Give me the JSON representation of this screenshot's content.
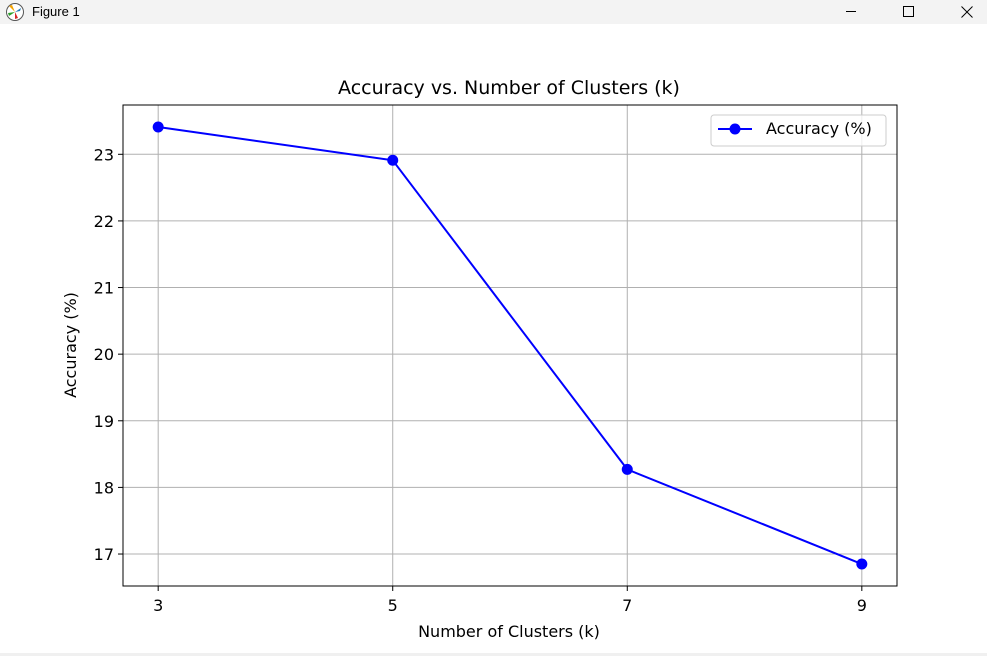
{
  "window": {
    "title": "Figure 1",
    "icon": "matplotlib-icon",
    "controls": {
      "minimize_icon": "minimize-icon",
      "maximize_icon": "maximize-icon",
      "close_icon": "close-icon"
    }
  },
  "chart_data": {
    "type": "line",
    "title": "Accuracy vs. Number of Clusters (k)",
    "xlabel": "Number of Clusters (k)",
    "ylabel": "Accuracy (%)",
    "x": [
      3,
      5,
      7,
      9
    ],
    "xticks": [
      "3",
      "5",
      "7",
      "9"
    ],
    "yticks": [
      "17",
      "18",
      "19",
      "20",
      "21",
      "22",
      "23"
    ],
    "xlim": [
      2.7,
      9.3
    ],
    "ylim": [
      16.52,
      23.74
    ],
    "grid": true,
    "legend_position": "top-right",
    "series": [
      {
        "name": "Accuracy (%)",
        "color": "#0000ff",
        "marker": "circle",
        "values": [
          23.41,
          22.91,
          18.27,
          16.85
        ]
      }
    ]
  }
}
